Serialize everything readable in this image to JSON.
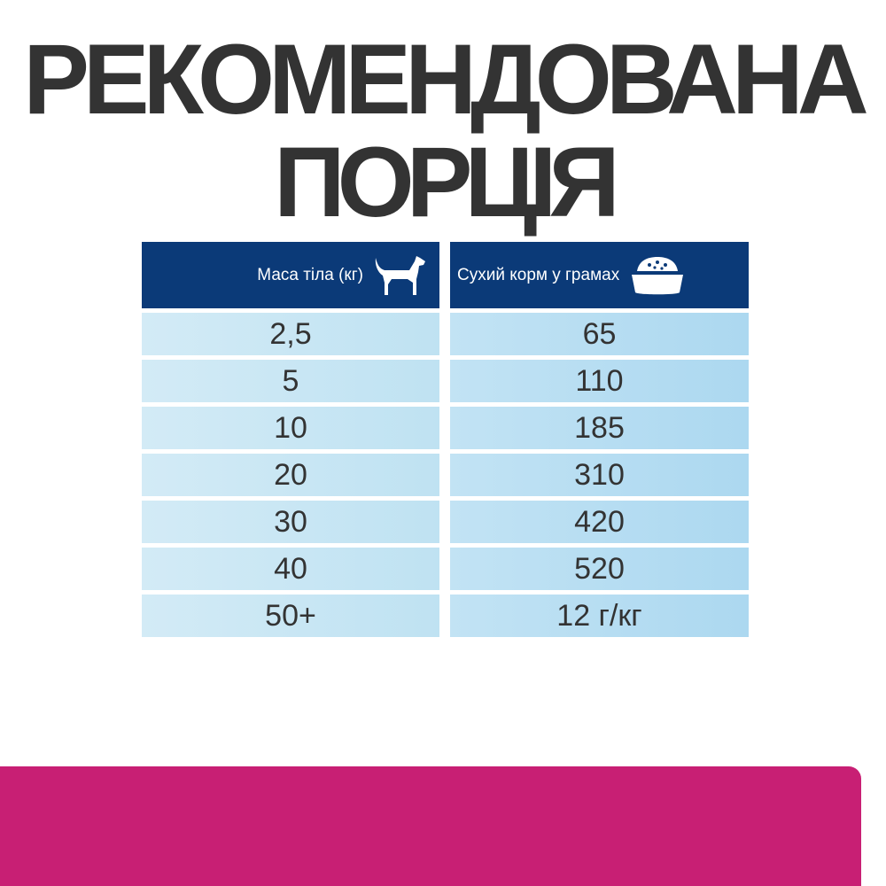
{
  "title": {
    "line1": "РЕКОМЕНДОВАНА",
    "line2": "ПОРЦІЯ"
  },
  "table": {
    "headers": [
      {
        "label": "Маса тіла (кг)",
        "icon": "dog-icon"
      },
      {
        "label": "Сухий корм у грамах",
        "icon": "food-bowl-icon"
      }
    ],
    "rows": [
      [
        "2,5",
        "65"
      ],
      [
        "5",
        "110"
      ],
      [
        "10",
        "185"
      ],
      [
        "20",
        "310"
      ],
      [
        "30",
        "420"
      ],
      [
        "40",
        "520"
      ],
      [
        "50+",
        "12 г/кг"
      ]
    ]
  },
  "colors": {
    "header": "#0b3a78",
    "accent_band": "#c81f74",
    "text": "#333333"
  }
}
